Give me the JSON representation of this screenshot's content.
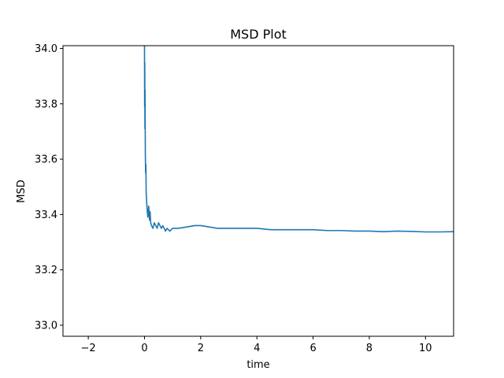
{
  "chart_data": {
    "type": "line",
    "title": "MSD Plot",
    "xlabel": "time",
    "ylabel": "MSD",
    "xlim": [
      -2.9,
      11.0
    ],
    "ylim": [
      32.96,
      34.01
    ],
    "xticks": [
      -2,
      0,
      2,
      4,
      6,
      8,
      10
    ],
    "xtick_labels": [
      "−2",
      "0",
      "2",
      "4",
      "6",
      "8",
      "10"
    ],
    "yticks": [
      33.0,
      33.2,
      33.4,
      33.6,
      33.8,
      34.0
    ],
    "ytick_labels": [
      "33.0",
      "33.2",
      "33.4",
      "33.6",
      "33.8",
      "34.0"
    ],
    "grid": false,
    "legend": "none",
    "series": [
      {
        "color": "#1f77b4",
        "x": [
          0.0,
          0.005,
          0.01,
          0.015,
          0.02,
          0.03,
          0.04,
          0.05,
          0.06,
          0.08,
          0.1,
          0.12,
          0.15,
          0.18,
          0.2,
          0.22,
          0.25,
          0.3,
          0.35,
          0.4,
          0.45,
          0.5,
          0.55,
          0.6,
          0.65,
          0.7,
          0.75,
          0.8,
          0.9,
          1.0,
          1.2,
          1.5,
          1.8,
          2.0,
          2.3,
          2.6,
          3.0,
          3.5,
          4.0,
          4.5,
          5.0,
          5.5,
          6.0,
          6.5,
          7.0,
          7.5,
          8.0,
          8.5,
          9.0,
          9.5,
          10.0,
          10.5,
          11.0
        ],
        "y": [
          34.01,
          33.79,
          33.95,
          33.71,
          33.85,
          33.62,
          33.55,
          33.58,
          33.48,
          33.44,
          33.41,
          33.39,
          33.43,
          33.38,
          33.41,
          33.37,
          33.36,
          33.35,
          33.37,
          33.36,
          33.35,
          33.37,
          33.36,
          33.35,
          33.36,
          33.35,
          33.34,
          33.35,
          33.34,
          33.35,
          33.35,
          33.355,
          33.36,
          33.36,
          33.355,
          33.35,
          33.35,
          33.35,
          33.35,
          33.345,
          33.345,
          33.345,
          33.345,
          33.342,
          33.342,
          33.34,
          33.34,
          33.338,
          33.34,
          33.339,
          33.337,
          33.337,
          33.338
        ]
      }
    ]
  }
}
